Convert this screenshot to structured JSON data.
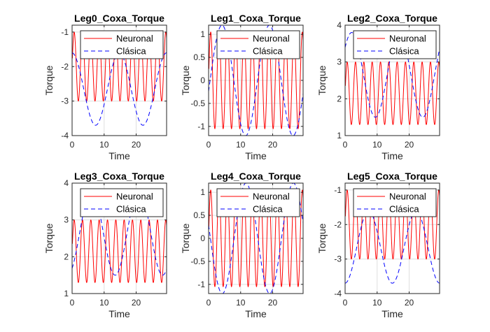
{
  "chart_data": [
    {
      "type": "line",
      "title": "Leg0_Coxa_Torque",
      "xlabel": "Time",
      "ylabel": "Torque",
      "xlim": [
        0,
        29.5
      ],
      "ylim": [
        -4,
        -0.8
      ],
      "xticks": [
        0,
        10,
        20
      ],
      "yticks": [
        -4,
        -3,
        -2,
        -1
      ],
      "grid": true,
      "legend": "top-right",
      "series": [
        {
          "name": "Neuronal",
          "color": "#ff0000",
          "style": "solid",
          "model": {
            "kind": "sin",
            "start": 0.1,
            "amp": 1.0,
            "mid": -2.0,
            "period": 2.6,
            "phase": 0.0
          }
        },
        {
          "name": "Clásica",
          "color": "#0000ff",
          "style": "dashed",
          "model": {
            "kind": "sin",
            "start": 0.0,
            "amp": 1.05,
            "mid": -2.65,
            "period": 14.8,
            "phase": 1.6
          }
        }
      ]
    },
    {
      "type": "line",
      "title": "Leg1_Coxa_Torque",
      "xlabel": "Time",
      "ylabel": "Torque",
      "xlim": [
        0,
        29.5
      ],
      "ylim": [
        -1.2,
        1.2
      ],
      "xticks": [
        0,
        10,
        20
      ],
      "yticks": [
        -1,
        -0.5,
        0,
        0.5,
        1
      ],
      "grid": true,
      "legend": "top-right",
      "series": [
        {
          "name": "Neuronal",
          "color": "#ff0000",
          "style": "solid",
          "model": {
            "kind": "sin",
            "start": 0.1,
            "amp": 1.05,
            "mid": 0.0,
            "period": 2.6,
            "phase": 0.0
          }
        },
        {
          "name": "Clásica",
          "color": "#0000ff",
          "style": "dashed",
          "model": {
            "kind": "sin",
            "start": 0.0,
            "amp": 1.2,
            "mid": 0.0,
            "period": 14.8,
            "phase": -0.2
          }
        }
      ]
    },
    {
      "type": "line",
      "title": "Leg2_Coxa_Torque",
      "xlabel": "Time",
      "ylabel": "Torque",
      "xlim": [
        0,
        29.5
      ],
      "ylim": [
        1,
        4
      ],
      "xticks": [
        0,
        10,
        20
      ],
      "yticks": [
        1,
        2,
        3,
        4
      ],
      "grid": true,
      "legend": "top-right",
      "series": [
        {
          "name": "Neuronal",
          "color": "#ff0000",
          "style": "solid",
          "model": {
            "kind": "sin",
            "start": 0.1,
            "amp": 0.85,
            "mid": 2.15,
            "period": 2.6,
            "phase": 0.0
          }
        },
        {
          "name": "Clásica",
          "color": "#0000ff",
          "style": "dashed",
          "model": {
            "kind": "sin",
            "start": 0.0,
            "amp": 1.15,
            "mid": 2.65,
            "period": 14.8,
            "phase": 0.7
          }
        }
      ]
    },
    {
      "type": "line",
      "title": "Leg3_Coxa_Torque",
      "xlabel": "Time",
      "ylabel": "Torque",
      "xlim": [
        0,
        29.5
      ],
      "ylim": [
        1,
        4
      ],
      "xticks": [
        0,
        10,
        20
      ],
      "yticks": [
        1,
        2,
        3,
        4
      ],
      "grid": true,
      "legend": "top-right",
      "series": [
        {
          "name": "Neuronal",
          "color": "#ff0000",
          "style": "solid",
          "model": {
            "kind": "sin",
            "start": 0.1,
            "amp": 0.85,
            "mid": 2.15,
            "period": 2.6,
            "phase": 0.0
          }
        },
        {
          "name": "Clásica",
          "color": "#0000ff",
          "style": "dashed",
          "model": {
            "kind": "sin",
            "start": 0.0,
            "amp": 1.15,
            "mid": 2.65,
            "period": 14.8,
            "phase": -1.0
          }
        }
      ]
    },
    {
      "type": "line",
      "title": "Leg4_Coxa_Torque",
      "xlabel": "Time",
      "ylabel": "Torque",
      "xlim": [
        0,
        29.5
      ],
      "ylim": [
        -1.2,
        1.2
      ],
      "xticks": [
        0,
        10,
        20
      ],
      "yticks": [
        -1,
        -0.5,
        0,
        0.5,
        1
      ],
      "grid": true,
      "legend": "top-right",
      "series": [
        {
          "name": "Neuronal",
          "color": "#ff0000",
          "style": "solid",
          "model": {
            "kind": "sin",
            "start": 0.1,
            "amp": 1.05,
            "mid": 0.0,
            "period": 2.6,
            "phase": 0.0
          }
        },
        {
          "name": "Clásica",
          "color": "#0000ff",
          "style": "dashed",
          "model": {
            "kind": "sin",
            "start": 0.0,
            "amp": 1.2,
            "mid": 0.0,
            "period": 14.8,
            "phase": 2.9
          }
        }
      ]
    },
    {
      "type": "line",
      "title": "Leg5_Coxa_Torque",
      "xlabel": "Time",
      "ylabel": "Torque",
      "xlim": [
        0,
        29.5
      ],
      "ylim": [
        -4,
        -0.8
      ],
      "xticks": [
        0,
        10,
        20
      ],
      "yticks": [
        -4,
        -3,
        -2,
        -1
      ],
      "grid": true,
      "legend": "top-right",
      "series": [
        {
          "name": "Neuronal",
          "color": "#ff0000",
          "style": "solid",
          "model": {
            "kind": "sin",
            "start": 0.1,
            "amp": 1.0,
            "mid": -2.0,
            "period": 2.6,
            "phase": 0.0
          }
        },
        {
          "name": "Clásica",
          "color": "#0000ff",
          "style": "dashed",
          "model": {
            "kind": "sin",
            "start": 0.0,
            "amp": 1.05,
            "mid": -2.65,
            "period": 14.8,
            "phase": -1.55
          }
        }
      ]
    }
  ]
}
